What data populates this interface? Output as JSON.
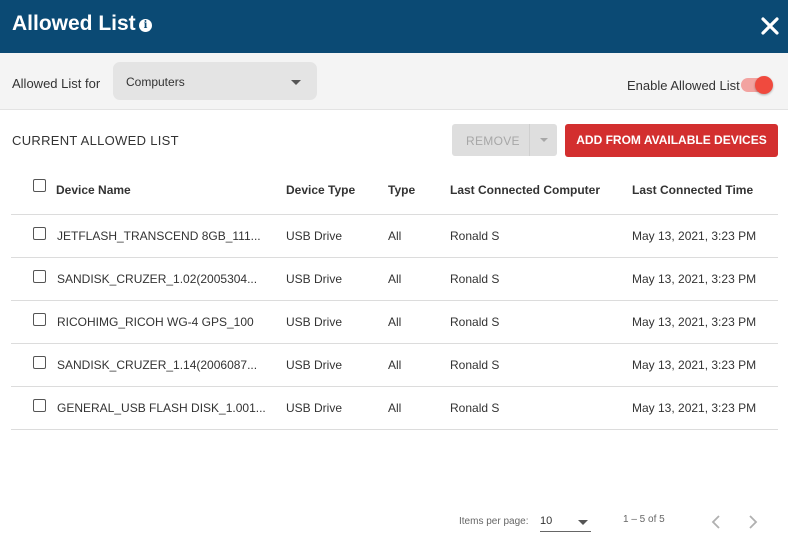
{
  "dialog": {
    "title": "Allowed List",
    "info_icon": "i",
    "close_icon": "close-icon"
  },
  "toolbar": {
    "allowed_for_label": "Allowed List for",
    "allowed_for_value": "Computers",
    "enable_label": "Enable Allowed List",
    "enabled": true,
    "accent_color": "#f04a3e"
  },
  "section": {
    "title": "CURRENT ALLOWED LIST",
    "remove_label": "REMOVE",
    "add_label": "ADD FROM AVAILABLE DEVICES"
  },
  "table": {
    "headers": [
      "Device Name",
      "Device Type",
      "Type",
      "Last Connected Computer",
      "Last Connected Time"
    ],
    "rows": [
      {
        "name": "JETFLASH_TRANSCEND 8GB_111...",
        "device_type": "USB Drive",
        "type": "All",
        "computer": "Ronald S",
        "time": "May 13, 2021, 3:23 PM"
      },
      {
        "name": "SANDISK_CRUZER_1.02(2005304...",
        "device_type": "USB Drive",
        "type": "All",
        "computer": "Ronald S",
        "time": "May 13, 2021, 3:23 PM"
      },
      {
        "name": "RICOHIMG_RICOH WG-4 GPS_100",
        "device_type": "USB Drive",
        "type": "All",
        "computer": "Ronald S",
        "time": "May 13, 2021, 3:23 PM"
      },
      {
        "name": "SANDISK_CRUZER_1.14(2006087...",
        "device_type": "USB Drive",
        "type": "All",
        "computer": "Ronald S",
        "time": "May 13, 2021, 3:23 PM"
      },
      {
        "name": "GENERAL_USB FLASH DISK_1.001...",
        "device_type": "USB Drive",
        "type": "All",
        "computer": "Ronald S",
        "time": "May 13, 2021, 3:23 PM"
      }
    ]
  },
  "pagination": {
    "items_per_page_label": "Items per page:",
    "items_per_page_value": "10",
    "range": "1 – 5 of 5"
  },
  "colors": {
    "header_bg": "#0b4a74",
    "add_button": "#d32f2f"
  }
}
